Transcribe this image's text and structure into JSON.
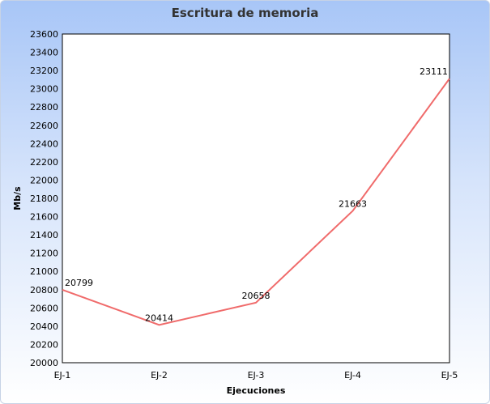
{
  "chart_data": {
    "type": "line",
    "title": "Escritura de memoria",
    "xlabel": "Ejecuciones",
    "ylabel": "Mb/s",
    "categories": [
      "EJ-1",
      "EJ-2",
      "EJ-3",
      "EJ-4",
      "EJ-5"
    ],
    "series": [
      {
        "values": [
          20799,
          20414,
          20658,
          21663,
          23111
        ],
        "color": "#f06b6b"
      }
    ],
    "ylim": [
      20000,
      23600
    ],
    "ystep": 200,
    "grid": false,
    "legend": "none"
  }
}
